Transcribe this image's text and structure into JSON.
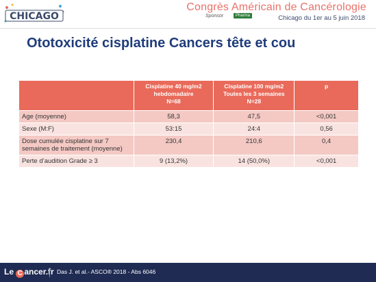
{
  "header": {
    "logo_text": "CHICAGO",
    "congress_title": "Congrès Américain de Cancérologie",
    "congress_sub": "Chicago du 1er au 5 juin 2018",
    "sponsor_text": "Sponsor",
    "sponsor_badge": "Pharma"
  },
  "slide": {
    "title": "Ototoxicité cisplatine Cancers tête et cou"
  },
  "table": {
    "headers": [
      "",
      "Cisplatine 40 mg/m2\nhebdomadaire\nN=68",
      "Cisplatine 100 mg/m2\nToutes les 3 semaines\nN=28",
      "p"
    ],
    "rows": [
      [
        "Age (moyenne)",
        "58,3",
        "47,5",
        "<0,001"
      ],
      [
        "Sexe (M:F)",
        "53:15",
        "24:4",
        "0,56"
      ],
      [
        "Dose cumulée cisplatine sur 7 semaines de traitement (moyenne)",
        "230,4",
        "210,6",
        "0,4"
      ],
      [
        "Perte d’audition Grade ≥ 3",
        "9 (13,2%)",
        "14 (50,0%)",
        "<0,001"
      ]
    ]
  },
  "footer": {
    "brand_prefix": "Le",
    "brand_c": "C",
    "brand_suffix": "ancer.fr",
    "reference": "Das J. et al.- ASCO® 2018 - Abs 6046"
  },
  "colors": {
    "title_blue": "#1f3c7a",
    "header_coral": "#e96a5a",
    "row_pink": "#f4c9c4",
    "row_pink_light": "#f9e3e0",
    "footer_navy": "#1f2b52"
  }
}
